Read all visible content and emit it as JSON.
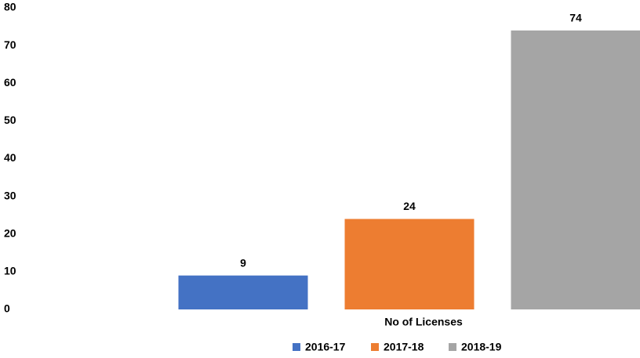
{
  "chart_data": {
    "type": "bar",
    "categories": [
      "No of Licenses"
    ],
    "series": [
      {
        "name": "2016-17",
        "color": "#4472c4",
        "values": [
          9
        ]
      },
      {
        "name": "2017-18",
        "color": "#ed7d31",
        "values": [
          24
        ]
      },
      {
        "name": "2018-19",
        "color": "#a5a5a5",
        "values": [
          74
        ]
      }
    ],
    "ylim": [
      0,
      80
    ],
    "yticks": [
      0,
      10,
      20,
      30,
      40,
      50,
      60,
      70,
      80
    ],
    "grid": false,
    "legend": "bottom",
    "data_labels": true
  }
}
